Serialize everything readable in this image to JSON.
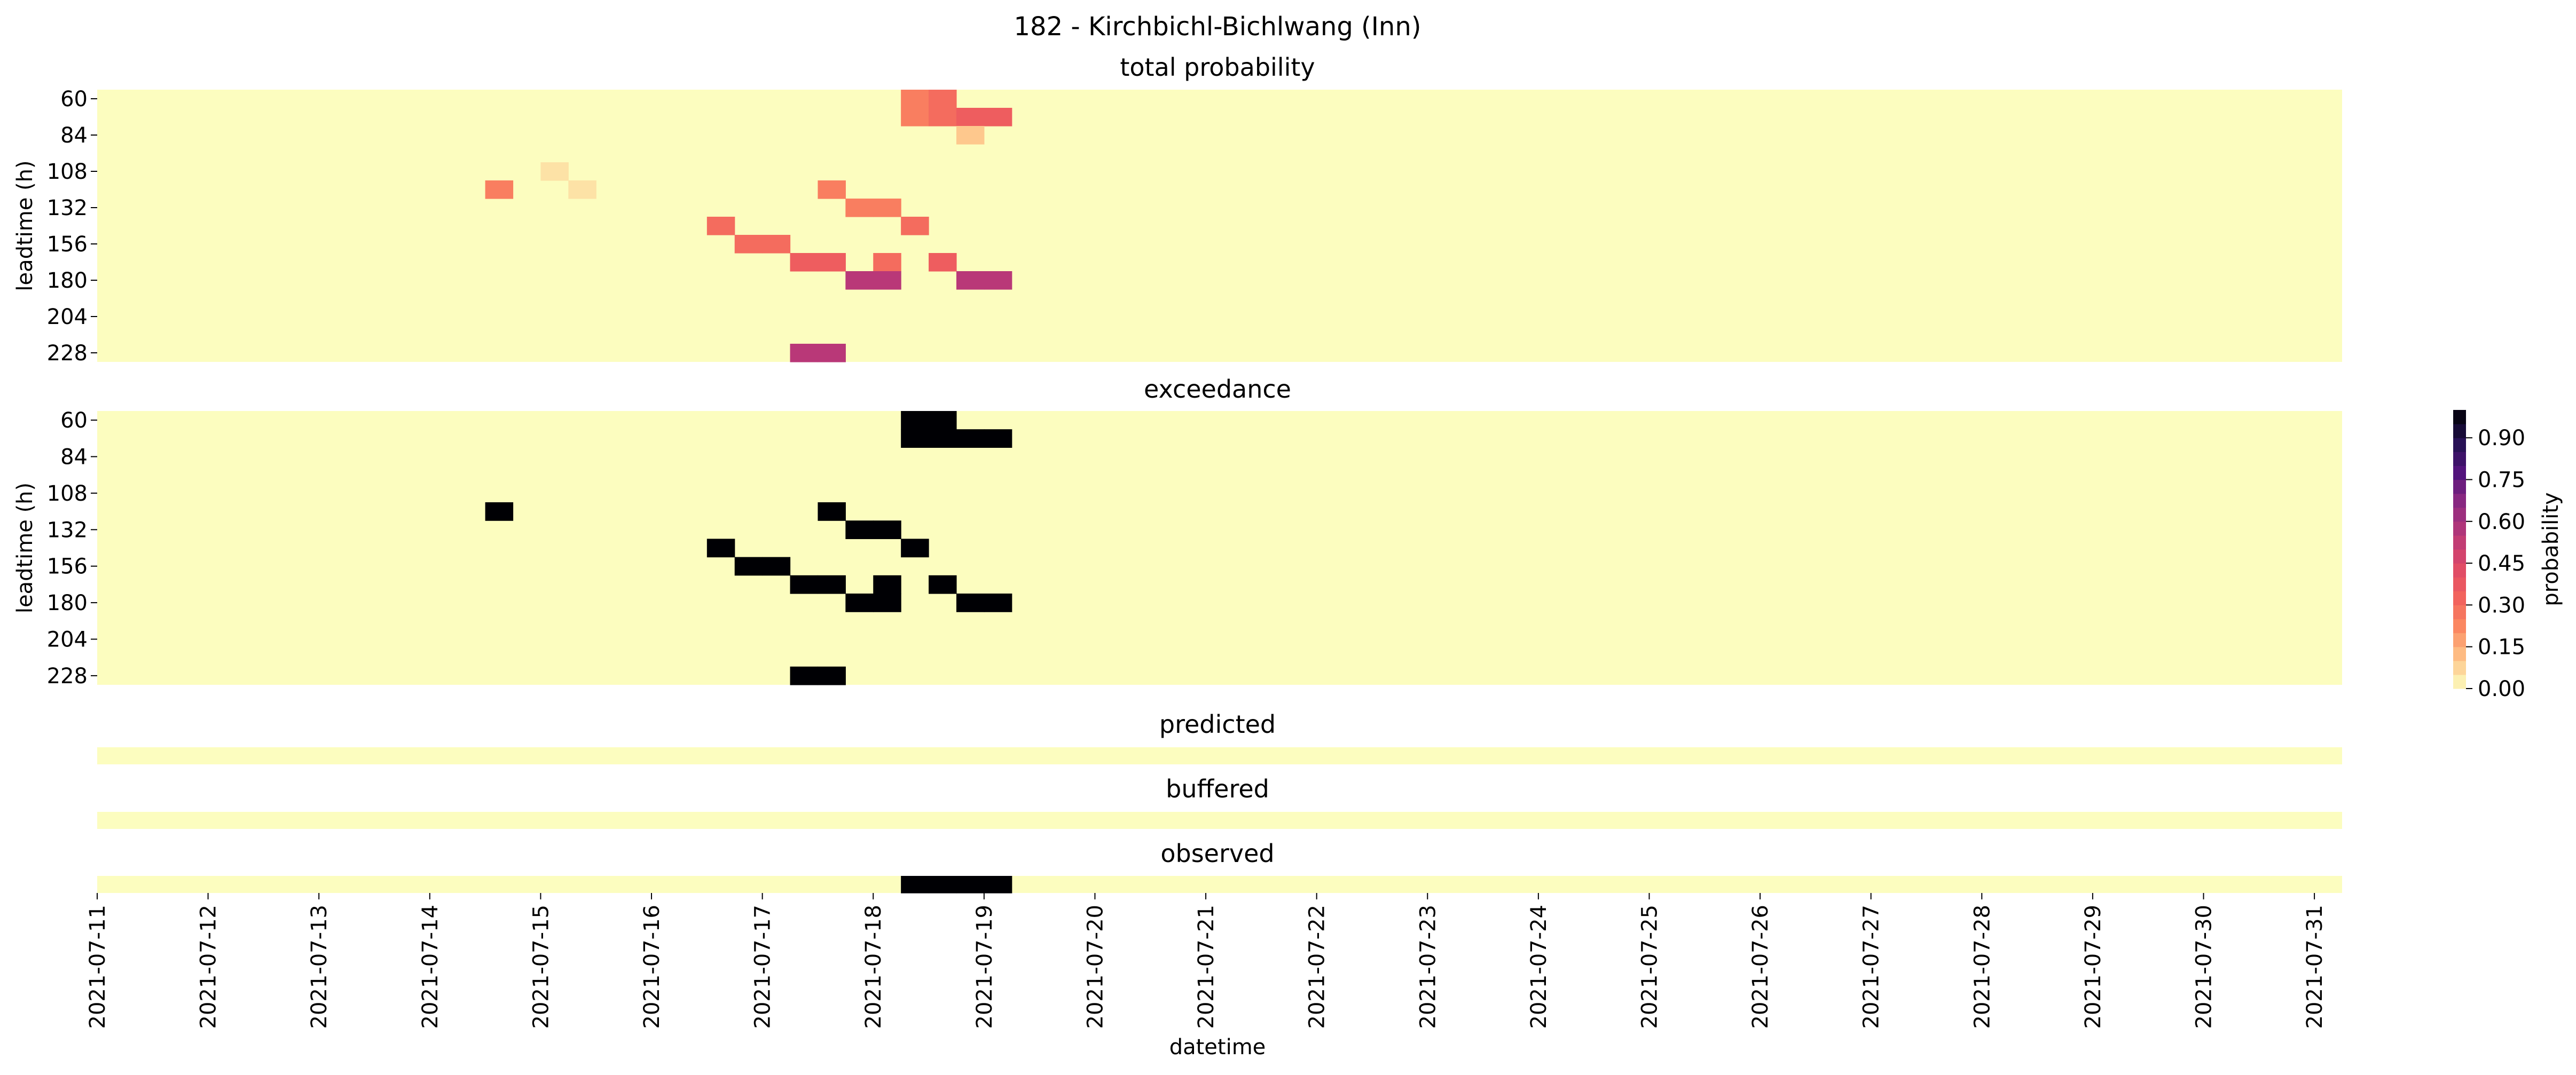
{
  "figure": {
    "title": "182 - Kirchbichl-Bichlwang (Inn)"
  },
  "chart_data": {
    "type": "heatmap",
    "title": "182 - Kirchbichl-Bichlwang (Inn)",
    "xlabel": "datetime",
    "x_ticks": [
      "2021-07-11",
      "2021-07-12",
      "2021-07-13",
      "2021-07-14",
      "2021-07-15",
      "2021-07-16",
      "2021-07-17",
      "2021-07-18",
      "2021-07-19",
      "2021-07-20",
      "2021-07-21",
      "2021-07-22",
      "2021-07-23",
      "2021-07-24",
      "2021-07-25",
      "2021-07-26",
      "2021-07-27",
      "2021-07-28",
      "2021-07-29",
      "2021-07-30",
      "2021-07-31"
    ],
    "x_range": [
      "2021-07-11 00:00",
      "2021-07-31 06:00"
    ],
    "time_step_hours": 6,
    "leadtime_step_hours": 12,
    "leadtime_range": [
      60,
      240
    ],
    "colorbar": {
      "label": "probability",
      "ticks": [
        "0.00",
        "0.15",
        "0.30",
        "0.45",
        "0.60",
        "0.75",
        "0.90"
      ],
      "range": [
        0,
        1
      ],
      "colormap": "magma_r",
      "levels": 20,
      "colors": [
        "#fcfdbf",
        "#fec287",
        "#fb8861",
        "#f1605d",
        "#de4968",
        "#b73779",
        "#8c2981",
        "#51127c",
        "#221150",
        "#000004"
      ]
    },
    "panels": [
      {
        "title": "total probability",
        "ylabel": "leadtime (h)",
        "y_ticks": [
          "60",
          "84",
          "108",
          "132",
          "156",
          "180",
          "204",
          "228"
        ],
        "values": [
          {
            "time": "2021-07-18 06:00",
            "leadtime": 60,
            "value": 0.25
          },
          {
            "time": "2021-07-18 06:00",
            "leadtime": 72,
            "value": 0.25
          },
          {
            "time": "2021-07-18 12:00",
            "leadtime": 60,
            "value": 0.3
          },
          {
            "time": "2021-07-18 12:00",
            "leadtime": 72,
            "value": 0.3
          },
          {
            "time": "2021-07-18 18:00",
            "leadtime": 72,
            "value": 0.35
          },
          {
            "time": "2021-07-19 00:00",
            "leadtime": 72,
            "value": 0.35
          },
          {
            "time": "2021-07-18 18:00",
            "leadtime": 84,
            "value": 0.1
          },
          {
            "time": "2021-07-15 00:00",
            "leadtime": 108,
            "value": 0.05
          },
          {
            "time": "2021-07-14 12:00",
            "leadtime": 120,
            "value": 0.25
          },
          {
            "time": "2021-07-15 06:00",
            "leadtime": 120,
            "value": 0.05
          },
          {
            "time": "2021-07-17 12:00",
            "leadtime": 120,
            "value": 0.25
          },
          {
            "time": "2021-07-17 18:00",
            "leadtime": 132,
            "value": 0.25
          },
          {
            "time": "2021-07-18 00:00",
            "leadtime": 132,
            "value": 0.25
          },
          {
            "time": "2021-07-18 06:00",
            "leadtime": 144,
            "value": 0.3
          },
          {
            "time": "2021-07-16 12:00",
            "leadtime": 144,
            "value": 0.3
          },
          {
            "time": "2021-07-16 18:00",
            "leadtime": 156,
            "value": 0.3
          },
          {
            "time": "2021-07-17 00:00",
            "leadtime": 156,
            "value": 0.3
          },
          {
            "time": "2021-07-17 06:00",
            "leadtime": 168,
            "value": 0.35
          },
          {
            "time": "2021-07-17 12:00",
            "leadtime": 168,
            "value": 0.35
          },
          {
            "time": "2021-07-18 00:00",
            "leadtime": 168,
            "value": 0.3
          },
          {
            "time": "2021-07-18 12:00",
            "leadtime": 168,
            "value": 0.35
          },
          {
            "time": "2021-07-17 18:00",
            "leadtime": 180,
            "value": 0.55
          },
          {
            "time": "2021-07-18 00:00",
            "leadtime": 180,
            "value": 0.55
          },
          {
            "time": "2021-07-18 18:00",
            "leadtime": 180,
            "value": 0.55
          },
          {
            "time": "2021-07-19 00:00",
            "leadtime": 180,
            "value": 0.55
          },
          {
            "time": "2021-07-17 06:00",
            "leadtime": 228,
            "value": 0.55
          },
          {
            "time": "2021-07-17 12:00",
            "leadtime": 228,
            "value": 0.55
          }
        ]
      },
      {
        "title": "exceedance",
        "ylabel": "leadtime (h)",
        "y_ticks": [
          "60",
          "84",
          "108",
          "132",
          "156",
          "180",
          "204",
          "228"
        ],
        "values": [
          {
            "time": "2021-07-18 06:00",
            "leadtime": 60,
            "value": 1
          },
          {
            "time": "2021-07-18 06:00",
            "leadtime": 72,
            "value": 1
          },
          {
            "time": "2021-07-18 12:00",
            "leadtime": 60,
            "value": 1
          },
          {
            "time": "2021-07-18 12:00",
            "leadtime": 72,
            "value": 1
          },
          {
            "time": "2021-07-18 18:00",
            "leadtime": 72,
            "value": 1
          },
          {
            "time": "2021-07-19 00:00",
            "leadtime": 72,
            "value": 1
          },
          {
            "time": "2021-07-14 12:00",
            "leadtime": 120,
            "value": 1
          },
          {
            "time": "2021-07-17 12:00",
            "leadtime": 120,
            "value": 1
          },
          {
            "time": "2021-07-17 18:00",
            "leadtime": 132,
            "value": 1
          },
          {
            "time": "2021-07-18 00:00",
            "leadtime": 132,
            "value": 1
          },
          {
            "time": "2021-07-18 06:00",
            "leadtime": 144,
            "value": 1
          },
          {
            "time": "2021-07-16 12:00",
            "leadtime": 144,
            "value": 1
          },
          {
            "time": "2021-07-16 18:00",
            "leadtime": 156,
            "value": 1
          },
          {
            "time": "2021-07-17 00:00",
            "leadtime": 156,
            "value": 1
          },
          {
            "time": "2021-07-17 06:00",
            "leadtime": 168,
            "value": 1
          },
          {
            "time": "2021-07-17 12:00",
            "leadtime": 168,
            "value": 1
          },
          {
            "time": "2021-07-18 00:00",
            "leadtime": 168,
            "value": 1
          },
          {
            "time": "2021-07-18 12:00",
            "leadtime": 168,
            "value": 1
          },
          {
            "time": "2021-07-17 18:00",
            "leadtime": 180,
            "value": 1
          },
          {
            "time": "2021-07-18 00:00",
            "leadtime": 180,
            "value": 1
          },
          {
            "time": "2021-07-18 18:00",
            "leadtime": 180,
            "value": 1
          },
          {
            "time": "2021-07-19 00:00",
            "leadtime": 180,
            "value": 1
          },
          {
            "time": "2021-07-17 06:00",
            "leadtime": 228,
            "value": 1
          },
          {
            "time": "2021-07-17 12:00",
            "leadtime": 228,
            "value": 1
          }
        ]
      },
      {
        "title": "predicted",
        "values": []
      },
      {
        "title": "buffered",
        "values": []
      },
      {
        "title": "observed",
        "values": [
          {
            "time": "2021-07-18 06:00",
            "value": 1
          },
          {
            "time": "2021-07-18 12:00",
            "value": 1
          },
          {
            "time": "2021-07-18 18:00",
            "value": 1
          },
          {
            "time": "2021-07-19 00:00",
            "value": 1
          }
        ]
      }
    ]
  }
}
